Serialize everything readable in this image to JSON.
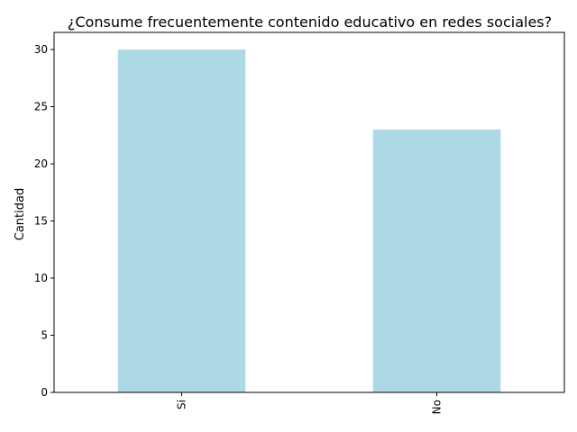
{
  "chart_data": {
    "type": "bar",
    "title": "¿Consume frecuentemente contenido educativo en redes sociales?",
    "xlabel": "",
    "ylabel": "Cantidad",
    "categories": [
      "Si",
      "No"
    ],
    "values": [
      30,
      23
    ],
    "ylim": [
      0,
      31.5
    ],
    "yticks": [
      0,
      5,
      10,
      15,
      20,
      25,
      30
    ],
    "bar_color": "#add8e6",
    "grid": false,
    "legend": "none"
  }
}
